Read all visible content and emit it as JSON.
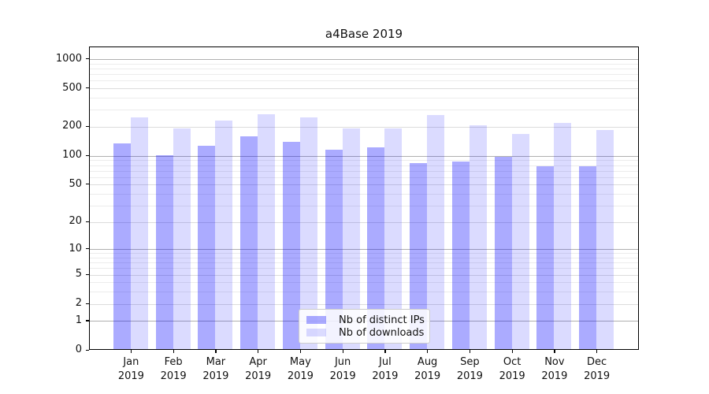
{
  "chart_data": {
    "type": "bar",
    "title": "a4Base 2019",
    "categories": [
      "Jan 2019",
      "Feb 2019",
      "Mar 2019",
      "Apr 2019",
      "May 2019",
      "Jun 2019",
      "Jul 2019",
      "Aug 2019",
      "Sep 2019",
      "Oct 2019",
      "Nov 2019",
      "Dec 2019"
    ],
    "months": [
      "Jan",
      "Feb",
      "Mar",
      "Apr",
      "May",
      "Jun",
      "Jul",
      "Aug",
      "Sep",
      "Oct",
      "Nov",
      "Dec"
    ],
    "year_label": "2019",
    "series": [
      {
        "name": "Nb of distinct IPs",
        "color": "rgba(0,0,255,0.33)",
        "color_hex": "#aaaaff",
        "values": [
          133,
          99,
          124,
          156,
          138,
          114,
          120,
          83,
          86,
          95,
          77,
          77
        ]
      },
      {
        "name": "Nb of downloads",
        "color": "rgba(0,0,255,0.14)",
        "color_hex": "#dbdbff",
        "values": [
          244,
          189,
          228,
          267,
          244,
          190,
          188,
          260,
          205,
          166,
          215,
          183
        ]
      }
    ],
    "yscale": "log1p",
    "ylim": [
      0,
      1338
    ],
    "yticks": [
      0,
      1,
      2,
      5,
      10,
      20,
      50,
      100,
      200,
      500,
      1000
    ],
    "gridlines": {
      "decade": [
        1,
        10,
        100,
        1000
      ],
      "mid": [
        2,
        5,
        20,
        50,
        200,
        500
      ],
      "minor": [
        3,
        4,
        6,
        7,
        8,
        9,
        30,
        40,
        60,
        70,
        80,
        90,
        300,
        400,
        600,
        700,
        800,
        900
      ]
    },
    "grid": true,
    "legend_position": "lower center"
  },
  "legend": {
    "items": [
      {
        "label": "Nb of distinct IPs",
        "color": "rgba(0,0,255,0.33)"
      },
      {
        "label": "Nb of downloads",
        "color": "rgba(0,0,255,0.14)"
      }
    ]
  },
  "colors": {
    "grid_decade": "#b0b0b0",
    "grid_mid": "#dcdcdc",
    "grid_minor": "#ececec",
    "axis": "#000000"
  }
}
